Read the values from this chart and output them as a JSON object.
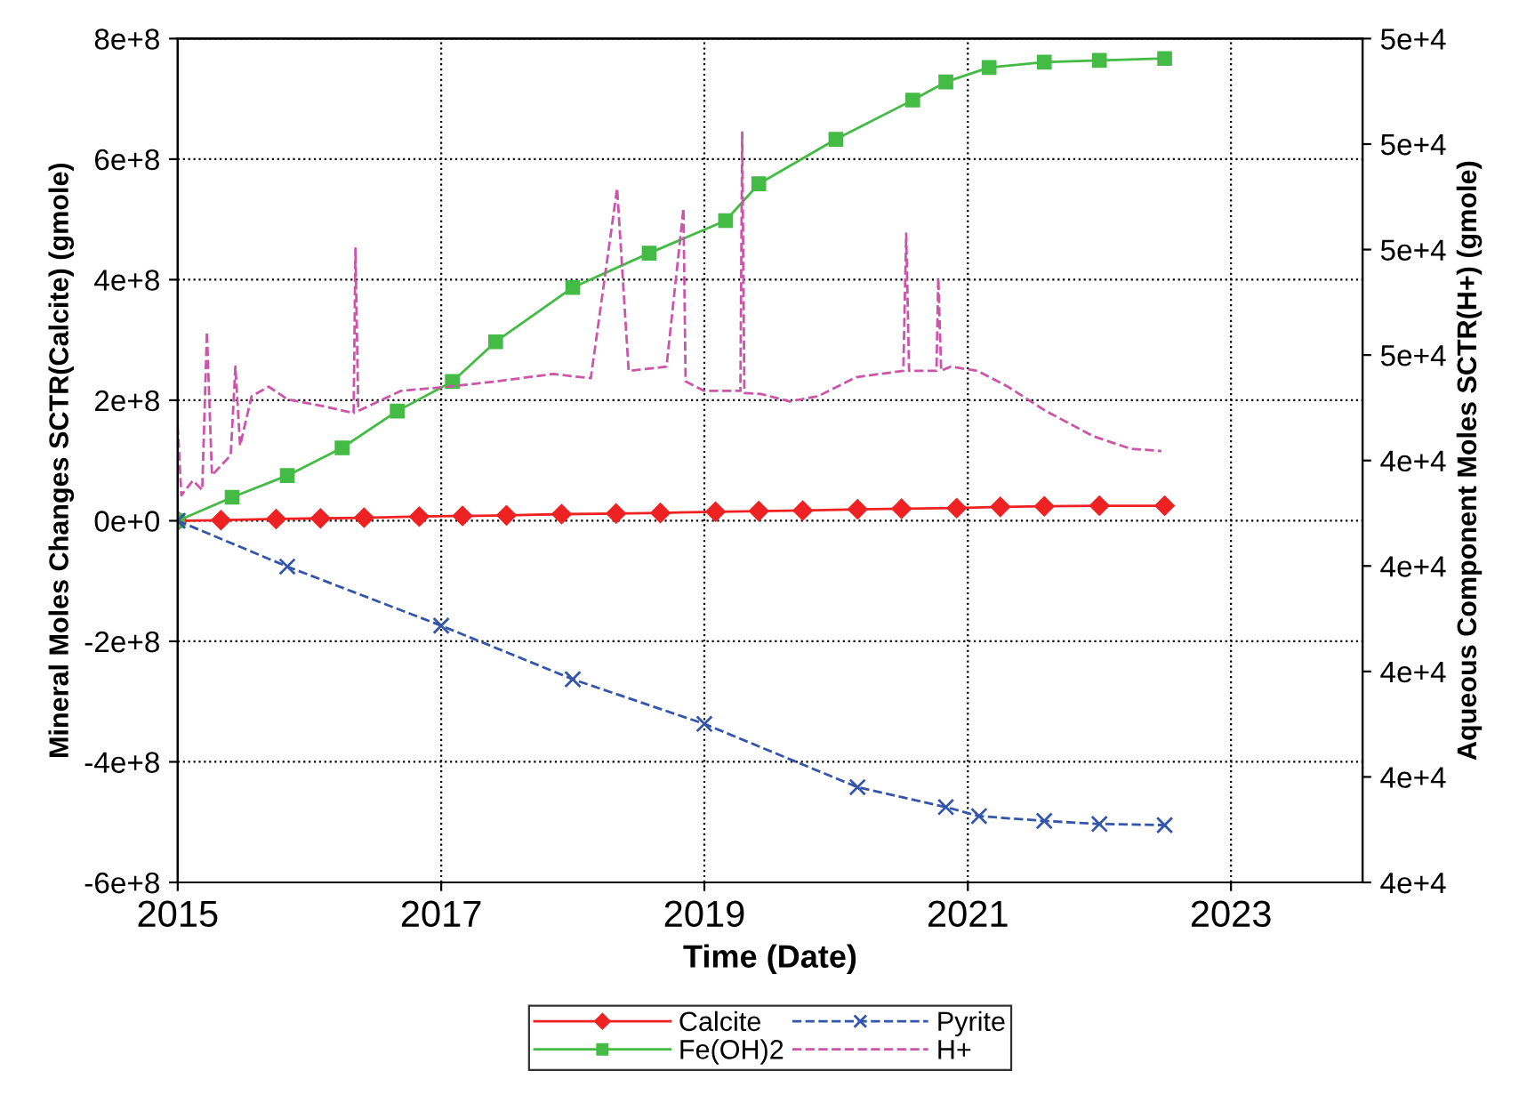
{
  "chart_data": {
    "type": "line",
    "xlabel": "Time (Date)",
    "ylabel": "Mineral Moles Changes SCTR(Calcite) (gmole)",
    "y2label": "Aqueous Component Moles SCTR(H+) (gmole)",
    "xlim": [
      "2015-01-01",
      "2024-01-01"
    ],
    "xticks": [
      "2015",
      "2017",
      "2019",
      "2021",
      "2023"
    ],
    "ylim": [
      -600000000,
      800000000
    ],
    "yticks": [
      {
        "value": -600000000,
        "label": "-6e+8"
      },
      {
        "value": -400000000,
        "label": "-4e+8"
      },
      {
        "value": -200000000,
        "label": "-2e+8"
      },
      {
        "value": 0,
        "label": "0e+0"
      },
      {
        "value": 200000000,
        "label": "2e+8"
      },
      {
        "value": 400000000,
        "label": "4e+8"
      },
      {
        "value": 600000000,
        "label": "6e+8"
      },
      {
        "value": 800000000,
        "label": "8e+8"
      }
    ],
    "y2lim": [
      41000,
      49000
    ],
    "y2ticks": [
      {
        "value": 41000,
        "label": "4e+4"
      },
      {
        "value": 42000,
        "label": "4e+4"
      },
      {
        "value": 43000,
        "label": "4e+4"
      },
      {
        "value": 44000,
        "label": "4e+4"
      },
      {
        "value": 45000,
        "label": "4e+4"
      },
      {
        "value": 46000,
        "label": "5e+4"
      },
      {
        "value": 47000,
        "label": "5e+4"
      },
      {
        "value": 48000,
        "label": "5e+4"
      },
      {
        "value": 49000,
        "label": "5e+4"
      }
    ],
    "grid": true,
    "legend": "bottom",
    "series": [
      {
        "name": "Calcite",
        "color": "#ee2222",
        "marker": "diamond",
        "line_style": "solid",
        "x": [
          "2015-01",
          "2015-05",
          "2015-10",
          "2016-02",
          "2016-06",
          "2016-11",
          "2017-03",
          "2017-07",
          "2017-12",
          "2018-05",
          "2018-09",
          "2019-02",
          "2019-06",
          "2019-10",
          "2020-03",
          "2020-07",
          "2020-12",
          "2021-04",
          "2021-08",
          "2022-01",
          "2022-07"
        ],
        "values": [
          0,
          1000000,
          3000000,
          4000000,
          5000000,
          7000000,
          8000000,
          9000000,
          11000000,
          12000000,
          13000000,
          15000000,
          16000000,
          17000000,
          19000000,
          20000000,
          21000000,
          23000000,
          24000000,
          25000000,
          25000000
        ]
      },
      {
        "name": "Fe(OH)2",
        "color": "#44bb44",
        "marker": "square",
        "line_style": "solid",
        "x": [
          "2015-01",
          "2015-06",
          "2015-11",
          "2016-04",
          "2016-09",
          "2017-02",
          "2017-06",
          "2018-01",
          "2018-08",
          "2019-03",
          "2019-06",
          "2020-01",
          "2020-08",
          "2020-11",
          "2021-03",
          "2021-08",
          "2022-01",
          "2022-07"
        ],
        "values": [
          0,
          39000000,
          75000000,
          121000000,
          182000000,
          231000000,
          297000000,
          387000000,
          444000000,
          498000000,
          559000000,
          633000000,
          698000000,
          728000000,
          752000000,
          761000000,
          764000000,
          767000000
        ]
      },
      {
        "name": "Pyrite",
        "color": "#3355aa",
        "marker": "cross",
        "line_style": "dashed",
        "x": [
          "2015-01",
          "2015-11",
          "2017-01",
          "2018-01",
          "2019-01",
          "2020-03",
          "2020-11",
          "2021-02",
          "2021-08",
          "2022-01",
          "2022-07"
        ],
        "values": [
          0,
          -76000000,
          -174000000,
          -263000000,
          -337000000,
          -442000000,
          -475000000,
          -490000000,
          -498000000,
          -503000000,
          -505000000
        ]
      },
      {
        "name": "H+",
        "color": "#cc55aa",
        "marker": "none",
        "line_style": "dashed",
        "axis": "y2",
        "x": [
          "2015-01-01",
          "2015-01-11",
          "2015-02-12",
          "2015-03-10",
          "2015-03-23",
          "2015-04-06",
          "2015-05-28",
          "2015-06-10",
          "2015-06-23",
          "2015-07-25",
          "2015-09-10",
          "2015-11-02",
          "2016-02-15",
          "2016-05-03",
          "2016-05-08",
          "2016-05-16",
          "2016-09-11",
          "2017-01-22",
          "2017-06-02",
          "2017-11-07",
          "2018-02-20",
          "2018-05-04",
          "2018-06-05",
          "2018-09-18",
          "2018-11-04",
          "2018-11-10",
          "2019-01-01",
          "2019-04-11",
          "2019-04-16",
          "2019-04-22",
          "2019-06-08",
          "2019-08-26",
          "2019-11-13",
          "2020-02-26",
          "2020-07-06",
          "2020-07-14",
          "2020-07-22",
          "2020-10-06",
          "2020-10-11",
          "2020-10-19",
          "2020-11-14",
          "2021-01-28",
          "2021-04-22",
          "2021-08-05",
          "2021-12-15",
          "2022-03-30",
          "2022-06-22"
        ],
        "values": [
          45330,
          44670,
          44810,
          44720,
          46220,
          44860,
          45050,
          45890,
          45140,
          45610,
          45700,
          45580,
          45510,
          45450,
          47010,
          45470,
          45660,
          45700,
          45750,
          45820,
          45780,
          47580,
          45850,
          45890,
          47390,
          45750,
          45660,
          45660,
          48110,
          45640,
          45630,
          45560,
          45610,
          45790,
          45850,
          47150,
          45850,
          45850,
          46730,
          45850,
          45890,
          45850,
          45700,
          45470,
          45230,
          45110,
          45090
        ]
      }
    ]
  }
}
